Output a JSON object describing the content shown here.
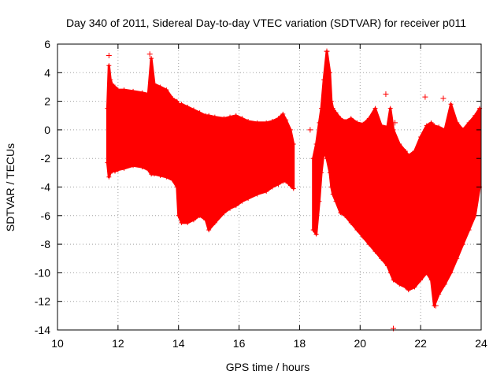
{
  "chart_data": {
    "type": "scatter",
    "title": "Day 340 of 2011, Sidereal Day-to-day VTEC variation (SDTVAR) for receiver p011",
    "xlabel": "GPS time / hours",
    "ylabel": "SDTVAR / TECUs",
    "xlim": [
      10,
      24
    ],
    "ylim": [
      -14,
      6
    ],
    "xticks": [
      10,
      12,
      14,
      16,
      18,
      20,
      22,
      24
    ],
    "yticks": [
      -14,
      -12,
      -10,
      -8,
      -6,
      -4,
      -2,
      0,
      2,
      4,
      6
    ],
    "grid": true,
    "marker": "+",
    "color": "#ff0000",
    "series": [
      {
        "name": "SDTVAR",
        "envelope_segments": [
          {
            "x": [
              11.65,
              11.7,
              11.75,
              11.8,
              11.9,
              12.0,
              12.2,
              12.5,
              12.8,
              13.0,
              13.1,
              13.2,
              13.4,
              13.6,
              13.8,
              13.95,
              14.0,
              14.1,
              14.3,
              14.5,
              14.7,
              14.9,
              15.0,
              15.2,
              15.5,
              15.7,
              15.9,
              16.1,
              16.3,
              16.6,
              16.9,
              17.1,
              17.3,
              17.45,
              17.55,
              17.7,
              17.8
            ],
            "upper": [
              1.5,
              4.5,
              3.5,
              3.2,
              3.0,
              2.8,
              2.8,
              2.7,
              2.6,
              2.5,
              5.0,
              3.2,
              3.0,
              2.8,
              2.2,
              2.0,
              1.8,
              1.8,
              1.6,
              1.4,
              1.2,
              1.0,
              1.0,
              0.9,
              0.8,
              0.9,
              1.0,
              0.8,
              0.6,
              0.5,
              0.5,
              0.6,
              0.8,
              1.1,
              0.7,
              0.0,
              -1.0
            ],
            "lower": [
              -2.3,
              -3.3,
              -3.0,
              -2.9,
              -2.9,
              -2.8,
              -2.7,
              -2.5,
              -2.6,
              -2.8,
              -3.1,
              -3.1,
              -3.2,
              -3.3,
              -3.5,
              -4.0,
              -6.0,
              -6.5,
              -6.5,
              -6.3,
              -6.0,
              -6.3,
              -7.0,
              -6.5,
              -5.8,
              -5.5,
              -5.3,
              -5.0,
              -4.8,
              -4.5,
              -4.3,
              -4.0,
              -3.8,
              -3.6,
              -3.6,
              -3.9,
              -4.1
            ]
          },
          {
            "x": [
              18.45,
              18.55,
              18.65,
              18.72,
              18.8,
              18.9,
              19.0,
              19.05,
              19.1,
              19.2,
              19.35,
              19.5,
              19.7,
              19.9,
              20.1,
              20.3,
              20.5,
              20.7,
              20.9,
              21.0,
              21.1,
              21.3,
              21.5,
              21.6,
              21.8,
              22.0,
              22.2,
              22.35,
              22.45,
              22.6,
              22.8,
              23.0,
              23.2,
              23.4,
              23.6,
              23.8,
              23.95
            ],
            "upper": [
              -2.0,
              -1.0,
              0.5,
              1.5,
              3.5,
              5.5,
              4.0,
              2.0,
              1.5,
              1.2,
              0.8,
              0.6,
              0.8,
              0.5,
              0.4,
              0.8,
              1.5,
              0.3,
              0.2,
              1.5,
              0.0,
              -1.0,
              -1.5,
              -1.8,
              -1.5,
              -0.5,
              0.3,
              0.5,
              0.3,
              0.2,
              0.0,
              1.8,
              0.5,
              0.0,
              0.5,
              1.0,
              1.5
            ],
            "lower": [
              -7.0,
              -7.3,
              -5.0,
              -3.0,
              -1.5,
              -2.0,
              -3.0,
              -4.0,
              -4.5,
              -5.0,
              -5.8,
              -6.0,
              -6.5,
              -7.0,
              -7.5,
              -8.0,
              -8.5,
              -9.0,
              -9.5,
              -10.0,
              -10.5,
              -10.8,
              -11.0,
              -11.2,
              -11.0,
              -10.5,
              -10.0,
              -10.5,
              -12.3,
              -11.5,
              -10.8,
              -10.0,
              -9.0,
              -8.0,
              -7.0,
              -6.0,
              -4.0
            ]
          }
        ],
        "outliers": [
          {
            "x": 11.7,
            "y": 5.2
          },
          {
            "x": 13.05,
            "y": 5.3
          },
          {
            "x": 18.35,
            "y": 0.0
          },
          {
            "x": 18.9,
            "y": 5.5
          },
          {
            "x": 20.85,
            "y": 2.5
          },
          {
            "x": 21.1,
            "y": -13.9
          },
          {
            "x": 21.15,
            "y": 0.5
          },
          {
            "x": 22.15,
            "y": 2.3
          },
          {
            "x": 22.75,
            "y": 2.2
          },
          {
            "x": 22.5,
            "y": -12.3
          }
        ]
      }
    ]
  }
}
